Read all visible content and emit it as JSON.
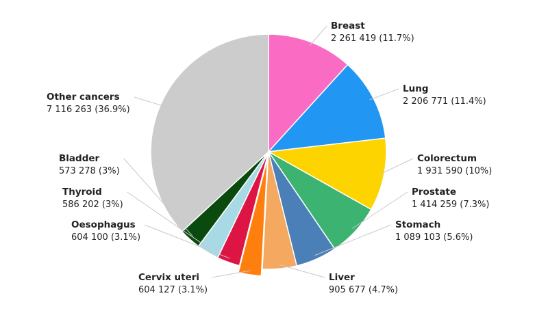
{
  "chart_data": {
    "type": "pie",
    "categories": [
      "Breast",
      "Lung",
      "Colorectum",
      "Prostate",
      "Stomach",
      "Liver",
      "Cervix uteri",
      "Oesophagus",
      "Thyroid",
      "Bladder",
      "Other cancers"
    ],
    "values": [
      2261419,
      2206771,
      1931590,
      1414259,
      1089103,
      905677,
      604127,
      604100,
      586202,
      573278,
      7116263
    ],
    "value_labels": [
      "2 261 419 (11.7%)",
      "2 206 771 (11.4%)",
      "1 931 590 (10%)",
      "1 414 259 (7.3%)",
      "1 089 103 (5.6%)",
      "905 677 (4.7%)",
      "604 127 (3.1%)",
      "604 100 (3.1%)",
      "586 202 (3%)",
      "573 278 (3%)",
      "7 116 263 (36.9%)"
    ],
    "colors": [
      "#fa6bc3",
      "#2196f3",
      "#fdd400",
      "#3cb371",
      "#4a7fb8",
      "#f4a860",
      "#ff7f0e",
      "#dc1545",
      "#a8dae6",
      "#0a4a0f",
      "#cccccc"
    ]
  }
}
